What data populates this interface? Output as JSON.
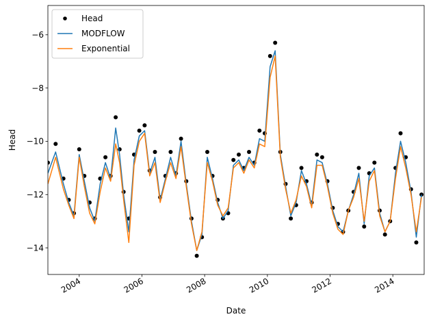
{
  "chart_data": {
    "type": "line",
    "xlabel": "Date",
    "ylabel": "Head",
    "xlim": [
      "2003-01-01",
      "2015-01-01"
    ],
    "ylim": [
      -15.0,
      -4.9
    ],
    "x_ticks": [
      "2004",
      "2006",
      "2008",
      "2010",
      "2012",
      "2014"
    ],
    "y_ticks": [
      -14,
      -12,
      -10,
      -8,
      -6
    ],
    "y_tick_labels": [
      "−14",
      "−12",
      "−10",
      "−8",
      "−6"
    ],
    "grid": false,
    "legend_position": "upper-left",
    "legend": [
      "Head",
      "MODFLOW",
      "Exponential"
    ],
    "colors": {
      "head": "#000000",
      "modflow": "#1f77b4",
      "exponential": "#ff7f0e"
    },
    "series": [
      {
        "name": "Head",
        "style": "points",
        "x": [
          "2003-01-01",
          "2003-04-01",
          "2003-07-01",
          "2003-09-01",
          "2003-11-01",
          "2004-01-01",
          "2004-03-01",
          "2004-05-01",
          "2004-07-01",
          "2004-09-01",
          "2004-11-01",
          "2005-01-01",
          "2005-03-01",
          "2005-04-15",
          "2005-06-01",
          "2005-08-01",
          "2005-10-01",
          "2005-12-01",
          "2006-02-01",
          "2006-04-01",
          "2006-06-01",
          "2006-08-01",
          "2006-10-01",
          "2006-12-01",
          "2007-02-01",
          "2007-04-01",
          "2007-06-01",
          "2007-08-01",
          "2007-10-01",
          "2007-12-01",
          "2008-02-01",
          "2008-04-01",
          "2008-06-01",
          "2008-08-01",
          "2008-10-01",
          "2008-12-01",
          "2009-02-01",
          "2009-04-01",
          "2009-06-01",
          "2009-08-01",
          "2009-10-01",
          "2009-12-01",
          "2010-02-01",
          "2010-04-01",
          "2010-06-01",
          "2010-08-01",
          "2010-10-01",
          "2010-12-01",
          "2011-02-01",
          "2011-04-01",
          "2011-06-01",
          "2011-08-01",
          "2011-10-01",
          "2011-12-01",
          "2012-02-01",
          "2012-04-01",
          "2012-06-01",
          "2012-08-01",
          "2012-10-01",
          "2012-12-01",
          "2013-02-01",
          "2013-04-01",
          "2013-06-01",
          "2013-08-01",
          "2013-10-01",
          "2013-12-01",
          "2014-02-01",
          "2014-04-01",
          "2014-06-01",
          "2014-08-01",
          "2014-10-01",
          "2014-12-01"
        ],
        "y": [
          -10.8,
          -10.1,
          -11.4,
          -12.2,
          -12.7,
          -10.3,
          -11.3,
          -12.3,
          -12.9,
          -11.4,
          -10.6,
          -11.3,
          -9.1,
          -10.3,
          -11.9,
          -12.9,
          -10.5,
          -9.6,
          -9.4,
          -11.1,
          -10.4,
          -12.1,
          -11.3,
          -10.4,
          -11.2,
          -9.9,
          -11.5,
          -12.9,
          -14.3,
          -13.6,
          -10.4,
          -11.3,
          -12.2,
          -12.9,
          -12.7,
          -10.7,
          -10.5,
          -11.0,
          -10.4,
          -10.8,
          -9.6,
          -9.7,
          -6.8,
          -6.3,
          -10.4,
          -11.6,
          -12.9,
          -12.4,
          -11.0,
          -11.5,
          -12.3,
          -10.5,
          -10.6,
          -11.5,
          -12.5,
          -13.1,
          -13.4,
          -12.6,
          -11.9,
          -11.0,
          -13.2,
          -11.2,
          -10.8,
          -12.6,
          -13.5,
          -13.0,
          -11.0,
          -9.7,
          -10.6,
          -11.8,
          -13.8,
          -12.0
        ]
      },
      {
        "name": "MODFLOW",
        "style": "line",
        "x": [
          "2003-01-01",
          "2003-04-01",
          "2003-07-01",
          "2003-09-01",
          "2003-11-01",
          "2004-01-01",
          "2004-03-01",
          "2004-05-01",
          "2004-07-01",
          "2004-09-01",
          "2004-11-01",
          "2005-01-01",
          "2005-03-01",
          "2005-04-15",
          "2005-06-01",
          "2005-08-01",
          "2005-10-01",
          "2005-12-01",
          "2006-02-01",
          "2006-04-01",
          "2006-06-01",
          "2006-08-01",
          "2006-10-01",
          "2006-12-01",
          "2007-02-01",
          "2007-04-01",
          "2007-06-01",
          "2007-08-01",
          "2007-10-01",
          "2007-12-01",
          "2008-02-01",
          "2008-04-01",
          "2008-06-01",
          "2008-08-01",
          "2008-10-01",
          "2008-12-01",
          "2009-02-01",
          "2009-04-01",
          "2009-06-01",
          "2009-08-01",
          "2009-10-01",
          "2009-12-01",
          "2010-02-01",
          "2010-04-01",
          "2010-06-01",
          "2010-08-01",
          "2010-10-01",
          "2010-12-01",
          "2011-02-01",
          "2011-04-01",
          "2011-06-01",
          "2011-08-01",
          "2011-10-01",
          "2011-12-01",
          "2012-02-01",
          "2012-04-01",
          "2012-06-01",
          "2012-08-01",
          "2012-10-01",
          "2012-12-01",
          "2013-02-01",
          "2013-04-01",
          "2013-06-01",
          "2013-08-01",
          "2013-10-01",
          "2013-12-01",
          "2014-02-01",
          "2014-04-01",
          "2014-06-01",
          "2014-08-01",
          "2014-10-01",
          "2014-12-01"
        ],
        "y": [
          -11.2,
          -10.4,
          -11.6,
          -12.3,
          -12.8,
          -10.5,
          -11.5,
          -12.5,
          -13.0,
          -11.6,
          -10.8,
          -11.4,
          -9.5,
          -10.5,
          -12.0,
          -13.4,
          -10.7,
          -9.8,
          -9.6,
          -11.2,
          -10.6,
          -12.2,
          -11.4,
          -10.6,
          -11.3,
          -10.0,
          -11.6,
          -13.0,
          -14.1,
          -13.5,
          -10.6,
          -11.4,
          -12.3,
          -12.9,
          -12.6,
          -10.9,
          -10.7,
          -11.1,
          -10.6,
          -10.9,
          -9.9,
          -10.0,
          -7.2,
          -6.6,
          -10.5,
          -11.7,
          -12.8,
          -12.3,
          -11.1,
          -11.6,
          -12.4,
          -10.7,
          -10.8,
          -11.6,
          -12.6,
          -13.2,
          -13.4,
          -12.6,
          -12.0,
          -11.2,
          -13.1,
          -11.3,
          -11.0,
          -12.7,
          -13.4,
          -13.0,
          -11.2,
          -10.0,
          -10.8,
          -11.9,
          -13.6,
          -12.0
        ]
      },
      {
        "name": "Exponential",
        "style": "line",
        "x": [
          "2003-01-01",
          "2003-04-01",
          "2003-07-01",
          "2003-09-01",
          "2003-11-01",
          "2004-01-01",
          "2004-03-01",
          "2004-05-01",
          "2004-07-01",
          "2004-09-01",
          "2004-11-01",
          "2005-01-01",
          "2005-03-01",
          "2005-04-15",
          "2005-06-01",
          "2005-08-01",
          "2005-10-01",
          "2005-12-01",
          "2006-02-01",
          "2006-04-01",
          "2006-06-01",
          "2006-08-01",
          "2006-10-01",
          "2006-12-01",
          "2007-02-01",
          "2007-04-01",
          "2007-06-01",
          "2007-08-01",
          "2007-10-01",
          "2007-12-01",
          "2008-02-01",
          "2008-04-01",
          "2008-06-01",
          "2008-08-01",
          "2008-10-01",
          "2008-12-01",
          "2009-02-01",
          "2009-04-01",
          "2009-06-01",
          "2009-08-01",
          "2009-10-01",
          "2009-12-01",
          "2010-02-01",
          "2010-04-01",
          "2010-06-01",
          "2010-08-01",
          "2010-10-01",
          "2010-12-01",
          "2011-02-01",
          "2011-04-01",
          "2011-06-01",
          "2011-08-01",
          "2011-10-01",
          "2011-12-01",
          "2012-02-01",
          "2012-04-01",
          "2012-06-01",
          "2012-08-01",
          "2012-10-01",
          "2012-12-01",
          "2013-02-01",
          "2013-04-01",
          "2013-06-01",
          "2013-08-01",
          "2013-10-01",
          "2013-12-01",
          "2014-02-01",
          "2014-04-01",
          "2014-06-01",
          "2014-08-01",
          "2014-10-01",
          "2014-12-01"
        ],
        "y": [
          -11.6,
          -10.6,
          -11.8,
          -12.4,
          -12.9,
          -10.6,
          -11.7,
          -12.7,
          -13.1,
          -11.9,
          -11.0,
          -11.5,
          -10.1,
          -10.8,
          -12.2,
          -13.8,
          -10.9,
          -10.0,
          -9.7,
          -11.3,
          -10.8,
          -12.3,
          -11.5,
          -10.8,
          -11.4,
          -10.2,
          -11.7,
          -13.1,
          -14.1,
          -13.4,
          -10.8,
          -11.5,
          -12.4,
          -12.8,
          -12.5,
          -11.0,
          -10.8,
          -11.2,
          -10.7,
          -11.0,
          -10.1,
          -10.2,
          -7.6,
          -6.8,
          -10.6,
          -11.8,
          -12.7,
          -12.2,
          -11.3,
          -11.7,
          -12.5,
          -10.9,
          -10.9,
          -11.7,
          -12.7,
          -13.3,
          -13.5,
          -12.6,
          -12.1,
          -11.4,
          -13.0,
          -11.5,
          -11.1,
          -12.8,
          -13.4,
          -13.0,
          -11.4,
          -10.2,
          -11.0,
          -12.0,
          -13.4,
          -12.1
        ]
      }
    ]
  }
}
